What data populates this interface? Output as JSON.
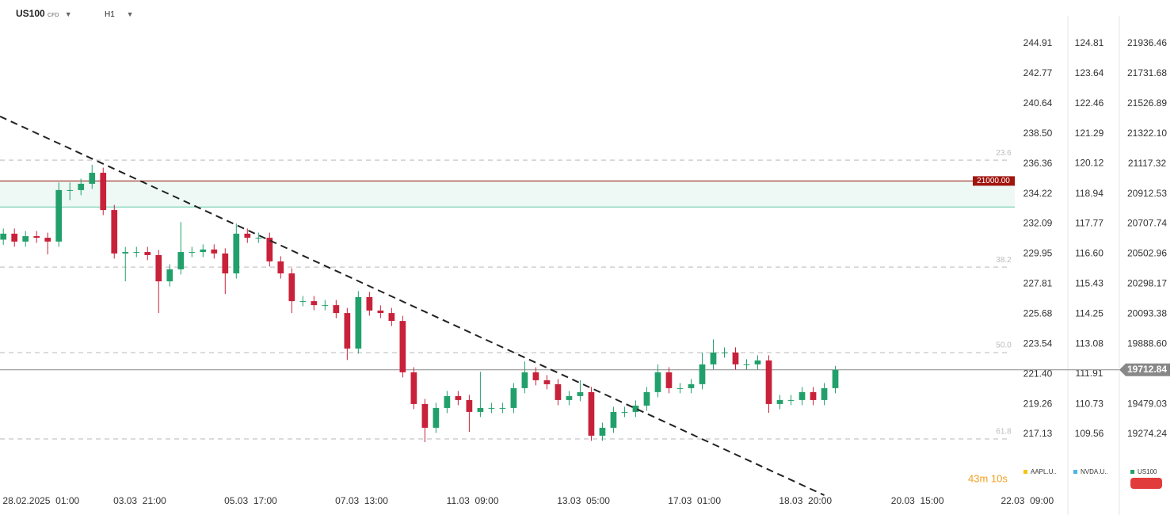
{
  "header": {
    "symbol": "US100",
    "kind": "CFD",
    "timeframe": "H1"
  },
  "countdown": "43m 10s",
  "chart_data": {
    "type": "candlestick",
    "open": [
      20600,
      20641,
      20587,
      20624,
      20613,
      20587,
      20938,
      20938,
      20981,
      21056,
      20802,
      20506,
      20516,
      20516,
      20495,
      20316,
      20398,
      20516,
      20516,
      20533,
      20506,
      20370,
      20641,
      20613,
      20613,
      20452,
      20370,
      20181,
      20181,
      20154,
      20154,
      20100,
      19858,
      20209,
      20117,
      20100,
      20046,
      19696,
      19480,
      19318,
      19453,
      19534,
      19507,
      19426,
      19453,
      19453,
      19453,
      19588,
      19696,
      19642,
      19615,
      19507,
      19534,
      19561,
      19264,
      19318,
      19426,
      19426,
      19469,
      19561,
      19696,
      19588,
      19588,
      19615,
      19750,
      19831,
      19831,
      19750,
      19750,
      19777,
      19480,
      19507,
      19507,
      19561,
      19507,
      19588
    ],
    "high": [
      20676,
      20676,
      20659,
      20659,
      20648,
      20990,
      20990,
      21016,
      21110,
      21091,
      20837,
      20551,
      20551,
      20551,
      20530,
      20433,
      20720,
      20551,
      20568,
      20568,
      20541,
      20710,
      20676,
      20648,
      20648,
      20487,
      20405,
      20216,
      20216,
      20189,
      20189,
      20135,
      20250,
      20244,
      20152,
      20135,
      20081,
      19731,
      19515,
      19488,
      19569,
      19569,
      19542,
      19700,
      19488,
      19488,
      19623,
      19770,
      19731,
      19677,
      19650,
      19569,
      19642,
      19596,
      19353,
      19461,
      19461,
      19504,
      19596,
      19750,
      19731,
      19623,
      19650,
      19831,
      19920,
      19866,
      19866,
      19785,
      19812,
      19812,
      19542,
      19542,
      19596,
      19596,
      19623,
      19740
    ],
    "low": [
      20565,
      20552,
      20552,
      20578,
      20500,
      20552,
      20870,
      20903,
      20946,
      20767,
      20471,
      20316,
      20481,
      20460,
      20100,
      20281,
      20363,
      20481,
      20481,
      20471,
      20230,
      20335,
      20578,
      20578,
      20417,
      20335,
      20100,
      20146,
      20119,
      20119,
      20065,
      19780,
      19823,
      20082,
      20065,
      20011,
      19661,
      19445,
      19220,
      19283,
      19418,
      19472,
      19290,
      19391,
      19418,
      19418,
      19418,
      19553,
      19607,
      19580,
      19472,
      19472,
      19499,
      19229,
      19229,
      19283,
      19391,
      19391,
      19434,
      19526,
      19553,
      19553,
      19553,
      19580,
      19715,
      19796,
      19715,
      19715,
      19715,
      19420,
      19445,
      19472,
      19472,
      19472,
      19472,
      19553
    ],
    "close": [
      20641,
      20587,
      20624,
      20613,
      20587,
      20938,
      20938,
      20981,
      21056,
      20802,
      20506,
      20516,
      20516,
      20495,
      20316,
      20398,
      20516,
      20516,
      20533,
      20506,
      20370,
      20641,
      20613,
      20613,
      20452,
      20370,
      20181,
      20181,
      20154,
      20154,
      20100,
      19858,
      20209,
      20117,
      20100,
      20046,
      19696,
      19480,
      19318,
      19453,
      19534,
      19507,
      19426,
      19453,
      19453,
      19453,
      19588,
      19696,
      19642,
      19615,
      19507,
      19534,
      19561,
      19264,
      19318,
      19426,
      19426,
      19469,
      19561,
      19696,
      19588,
      19588,
      19615,
      19750,
      19831,
      19831,
      19750,
      19750,
      19777,
      19480,
      19507,
      19507,
      19561,
      19507,
      19588,
      19712.84
    ],
    "up_color": "#22a06b",
    "down_color": "#c8213a",
    "xlim": [
      -0.3,
      91.1
    ],
    "xticks": [
      {
        "value": 3.4,
        "label": "28.02.2025  01:00"
      },
      {
        "value": 12.3,
        "label": "03.03  21:00"
      },
      {
        "value": 22.3,
        "label": "05.03  17:00"
      },
      {
        "value": 32.3,
        "label": "07.03  13:00"
      },
      {
        "value": 42.3,
        "label": "11.03  09:00"
      },
      {
        "value": 52.3,
        "label": "13.03  05:00"
      },
      {
        "value": 62.3,
        "label": "17.03  01:00"
      },
      {
        "value": 72.3,
        "label": "18.03  20:00"
      },
      {
        "value": 82.4,
        "label": "20.03  15:00"
      },
      {
        "value": 92.3,
        "label": "22.03  09:00"
      }
    ],
    "ylim": [
      18885.5,
      22233.5
    ],
    "yticks": [
      21936.46,
      21731.68,
      21526.89,
      {
        "value": 21322.1,
        "label": "21322.10"
      },
      21117.32,
      20912.53,
      20707.74,
      20502.96,
      20298.17,
      20093.38,
      {
        "value": 19888.6,
        "label": "19888.60"
      },
      19479.03,
      19274.24
    ],
    "y2lim": [
      213.07,
      248.01
    ],
    "y2ticks": [
      244.91,
      242.77,
      240.64,
      {
        "value": 238.5,
        "label": "238.50"
      },
      236.36,
      234.22,
      232.09,
      229.95,
      227.81,
      225.68,
      223.54,
      {
        "value": 221.4,
        "label": "221.40"
      },
      219.26,
      217.13
    ],
    "y3lim": [
      107.33,
      126.51
    ],
    "y3ticks": [
      124.81,
      123.64,
      122.46,
      121.29,
      120.12,
      118.94,
      117.77,
      {
        "value": 116.6,
        "label": "116.60"
      },
      115.43,
      114.25,
      113.08,
      111.91,
      110.73,
      109.56
    ],
    "last_price": 19712.84,
    "level": {
      "value": 21000,
      "label": "21000.00",
      "zone_low": 20823
    },
    "fib_levels": [
      {
        "price": 21142,
        "label": "23.6"
      },
      {
        "price": 20413,
        "label": "38.2"
      },
      {
        "price": 19830,
        "label": "50.0"
      },
      {
        "price": 19242,
        "label": "61.8"
      }
    ],
    "trendline": {
      "x": [
        -0.3,
        74.0
      ],
      "y": [
        21440,
        18858.5
      ]
    },
    "legend": [
      {
        "name": "AAPL.U..",
        "color": "#f2c511"
      },
      {
        "name": "NVDA.U..",
        "color": "#4fb3e8"
      },
      {
        "name": "US100",
        "color": "#22a06b"
      }
    ]
  }
}
